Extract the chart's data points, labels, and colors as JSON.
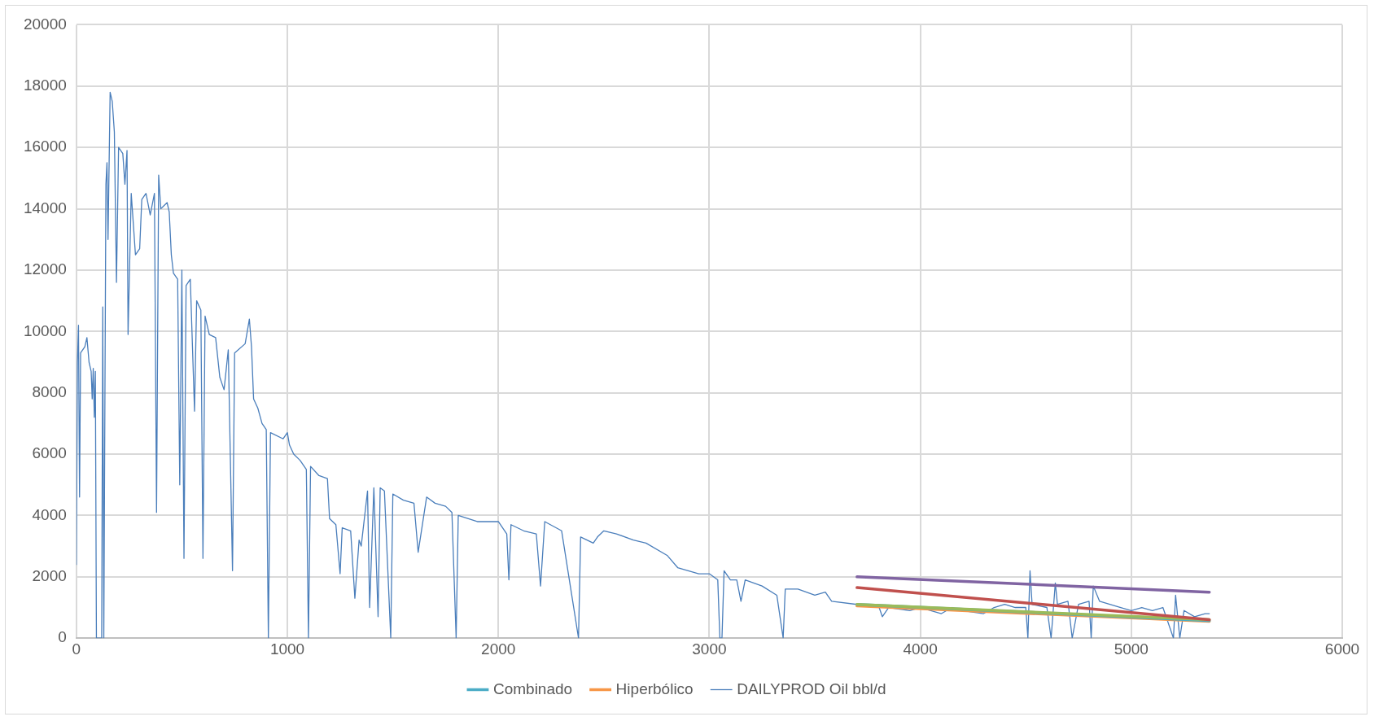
{
  "chart_data": {
    "type": "line",
    "xlim": [
      0,
      6000
    ],
    "xticks": [
      0,
      1000,
      2000,
      3000,
      4000,
      5000,
      6000
    ],
    "ylim": [
      0,
      20000
    ],
    "yticks": [
      0,
      2000,
      4000,
      6000,
      8000,
      10000,
      12000,
      14000,
      16000,
      18000,
      20000
    ],
    "grid": true,
    "legend": "bottom",
    "marker": "none",
    "line_style": "solid",
    "series": [
      {
        "name": "DAILYPROD Oil bbl/d",
        "color": "#4a7ebb",
        "x": [
          0,
          5,
          10,
          15,
          20,
          40,
          50,
          60,
          70,
          75,
          80,
          85,
          90,
          95,
          120,
          125,
          130,
          140,
          145,
          150,
          160,
          170,
          180,
          190,
          200,
          220,
          230,
          240,
          245,
          260,
          270,
          280,
          300,
          310,
          330,
          350,
          370,
          380,
          390,
          400,
          430,
          440,
          450,
          460,
          480,
          490,
          500,
          510,
          520,
          540,
          560,
          570,
          590,
          600,
          610,
          630,
          660,
          680,
          700,
          720,
          740,
          750,
          800,
          820,
          830,
          840,
          860,
          880,
          900,
          910,
          920,
          980,
          1000,
          1010,
          1030,
          1060,
          1090,
          1100,
          1110,
          1150,
          1190,
          1200,
          1230,
          1250,
          1260,
          1300,
          1320,
          1340,
          1350,
          1380,
          1390,
          1410,
          1430,
          1440,
          1460,
          1490,
          1500,
          1550,
          1600,
          1620,
          1660,
          1700,
          1750,
          1780,
          1800,
          1810,
          1900,
          2000,
          2040,
          2050,
          2060,
          2120,
          2180,
          2200,
          2220,
          2300,
          2380,
          2390,
          2450,
          2470,
          2500,
          2560,
          2640,
          2700,
          2800,
          2850,
          2950,
          3000,
          3040,
          3050,
          3060,
          3070,
          3100,
          3130,
          3150,
          3170,
          3250,
          3320,
          3350,
          3360,
          3420,
          3500,
          3550,
          3580,
          3700,
          3760,
          3800,
          3820,
          3850,
          3950,
          4000,
          4050,
          4100,
          4150,
          4200,
          4300,
          4350,
          4400,
          4450,
          4500,
          4510,
          4520,
          4530,
          4600,
          4620,
          4640,
          4650,
          4700,
          4720,
          4750,
          4800,
          4810,
          4820,
          4850,
          4950,
          5000,
          5050,
          5100,
          5150,
          5200,
          5210,
          5230,
          5250,
          5300,
          5350,
          5370
        ],
        "values": [
          2400,
          9000,
          10200,
          4600,
          9300,
          9500,
          9800,
          9000,
          8700,
          7800,
          8800,
          7200,
          8700,
          0,
          0,
          10800,
          0,
          14800,
          15500,
          13000,
          17800,
          17500,
          16500,
          11600,
          16000,
          15800,
          14800,
          15900,
          9900,
          14500,
          13500,
          12500,
          12700,
          14300,
          14500,
          13800,
          14500,
          4100,
          15100,
          14000,
          14200,
          13900,
          12500,
          11900,
          11700,
          5000,
          12000,
          2600,
          11500,
          11700,
          7400,
          11000,
          10700,
          2600,
          10500,
          9900,
          9800,
          8500,
          8100,
          9400,
          2200,
          9300,
          9600,
          10400,
          9500,
          7800,
          7500,
          7000,
          6800,
          0,
          6700,
          6500,
          6700,
          6300,
          6000,
          5800,
          5500,
          0,
          5600,
          5300,
          5200,
          3900,
          3700,
          2100,
          3600,
          3500,
          1300,
          3200,
          3000,
          4800,
          1000,
          4900,
          700,
          4900,
          4800,
          0,
          4700,
          4500,
          4400,
          2800,
          4600,
          4400,
          4300,
          4100,
          0,
          4000,
          3800,
          3800,
          3400,
          1900,
          3700,
          3500,
          3400,
          1700,
          3800,
          3500,
          0,
          3300,
          3100,
          3300,
          3500,
          3400,
          3200,
          3100,
          2700,
          2300,
          2100,
          2100,
          1900,
          0,
          0,
          2200,
          1900,
          1900,
          1200,
          1900,
          1700,
          1400,
          0,
          1600,
          1600,
          1400,
          1500,
          1200,
          1100,
          1100,
          1100,
          700,
          1000,
          900,
          1000,
          900,
          800,
          1000,
          900,
          800,
          1000,
          1100,
          1000,
          1000,
          0,
          2200,
          1100,
          1000,
          0,
          1800,
          1100,
          1200,
          0,
          1100,
          1200,
          0,
          1700,
          1200,
          1000,
          900,
          1000,
          900,
          1000,
          0,
          1400,
          0,
          900,
          700,
          800,
          800
        ]
      },
      {
        "color": "#c0504d",
        "x": [
          3700,
          5370
        ],
        "values": [
          1650,
          600
        ]
      },
      {
        "color": "#9bbb59",
        "x": [
          3700,
          5370
        ],
        "values": [
          1100,
          600
        ]
      },
      {
        "color": "#8064a2",
        "x": [
          3700,
          5370
        ],
        "values": [
          2000,
          1500
        ]
      },
      {
        "name": "Combinado",
        "color": "#4bacc6",
        "x": [
          3700,
          5370
        ],
        "values": [
          1100,
          570
        ]
      },
      {
        "name": "Hiperbólico",
        "color": "#f79646",
        "x": [
          3700,
          5370
        ],
        "values": [
          1050,
          550
        ]
      }
    ]
  }
}
